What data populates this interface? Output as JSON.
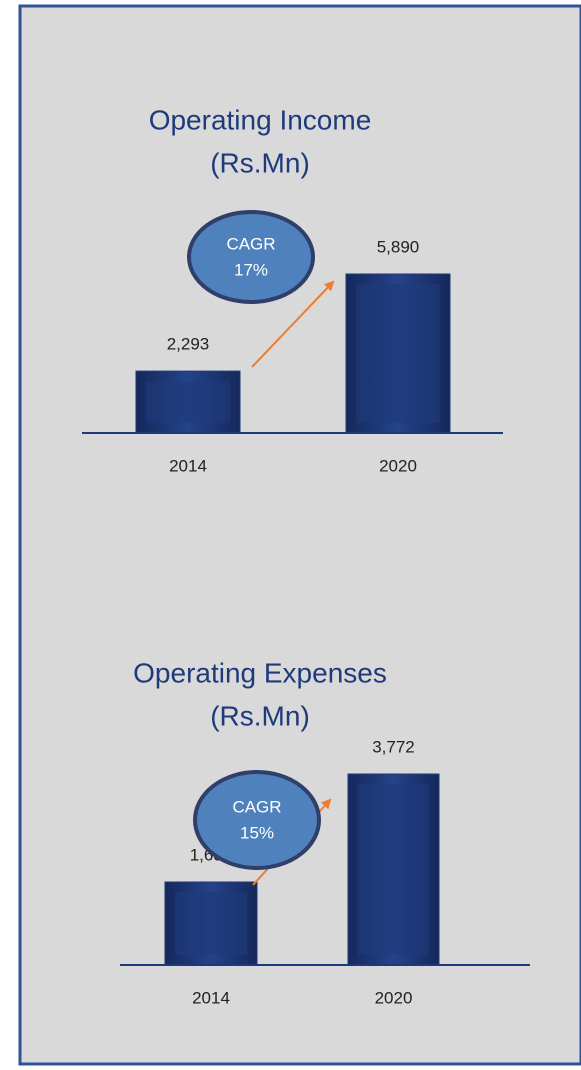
{
  "chart_data": [
    {
      "type": "bar",
      "title": "Operating Income",
      "subtitle": "(Rs.Mn)",
      "categories": [
        "2014",
        "2020"
      ],
      "values": [
        2293,
        5890
      ],
      "value_labels": [
        "2,293",
        "5,890"
      ],
      "color": "#1f3a7c",
      "annotations": [
        "CAGR",
        "17%"
      ]
    },
    {
      "type": "bar",
      "title": "Operating Expenses",
      "subtitle": "(Rs.Mn)",
      "categories": [
        "2014",
        "2020"
      ],
      "values": [
        1639,
        3772
      ],
      "value_labels": [
        "1,639",
        "3,772"
      ],
      "color": "#1f3a7c",
      "annotations": [
        "CAGR",
        "15%"
      ]
    }
  ]
}
